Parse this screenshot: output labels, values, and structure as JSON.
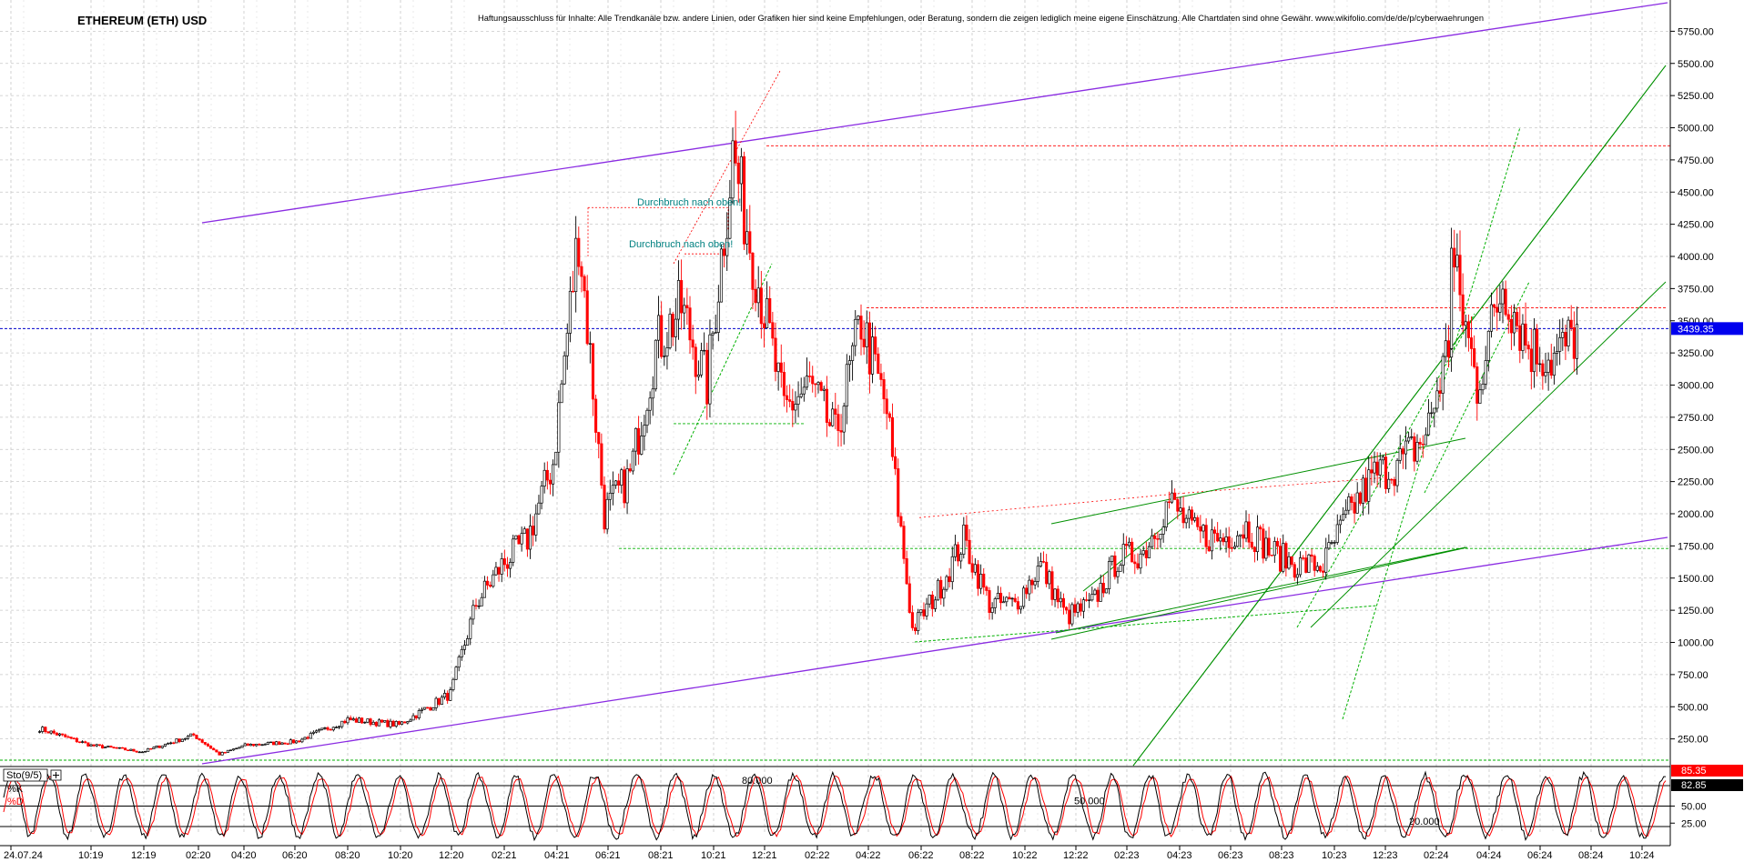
{
  "title": "ETHEREUM (ETH) USD",
  "disclaimer": "Haftungsausschluss für Inhalte: Alle Trendkanäle bzw. andere Linien, oder Grafiken hier sind keine Empfehlungen, oder Beratung, sondern die zeigen lediglich meine eigene Einschätzung. Alle Chartdaten sind ohne Gewähr.  www.wikifolio.com/de/de/p/cyberwaehrungen",
  "colors": {
    "channel": "#8a2be2",
    "trend": "#009000",
    "trend_dashed": "#00b000",
    "candle_up": "#000000",
    "candle_down": "#ff0000",
    "price_line": "#0000cc",
    "last_price_badge": "#0000ee",
    "stoch_k_badge": "#ff0000",
    "stoch_d_badge": "#000000",
    "annotation_text": "#008080",
    "resistance": "#ff0000"
  },
  "chart_data": {
    "type": "candlestick",
    "y_axis": {
      "side": "right",
      "range": [
        0,
        5950
      ],
      "ticks": [
        "250.00",
        "500.00",
        "750.00",
        "1000.00",
        "1250.00",
        "1500.00",
        "1750.00",
        "2000.00",
        "2250.00",
        "2500.00",
        "2750.00",
        "3000.00",
        "3250.00",
        "3500.00",
        "3750.00",
        "4000.00",
        "4250.00",
        "4500.00",
        "4750.00",
        "5000.00",
        "5250.00",
        "5500.00",
        "5750.00"
      ]
    },
    "x_axis": {
      "labels": [
        "24.07.24",
        "10:19",
        "12:19",
        "02:20",
        "04:20",
        "06:20",
        "08:20",
        "10:20",
        "12:20",
        "02:21",
        "04:21",
        "06:21",
        "08:21",
        "10:21",
        "12:21",
        "02:22",
        "04:22",
        "06:22",
        "08:22",
        "10:22",
        "12:22",
        "02:23",
        "04:23",
        "06:23",
        "08:23",
        "10:23",
        "12:23",
        "02:24",
        "04:24",
        "06:24",
        "08:24",
        "10:24"
      ]
    },
    "last_price": {
      "value": 3439.35,
      "label": "3439.35"
    },
    "price_path": [
      [
        "08:19",
        330
      ],
      [
        "10:19",
        200
      ],
      [
        "12:19",
        150
      ],
      [
        "02:20",
        280
      ],
      [
        "03:20",
        130
      ],
      [
        "04:20",
        200
      ],
      [
        "06:20",
        230
      ],
      [
        "08:20",
        400
      ],
      [
        "10:20",
        360
      ],
      [
        "12:20",
        600
      ],
      [
        "01:21",
        1300
      ],
      [
        "02:21",
        1600
      ],
      [
        "03:21",
        1800
      ],
      [
        "04:21",
        2400
      ],
      [
        "05:21",
        4200
      ],
      [
        "06:21",
        2000
      ],
      [
        "07:21",
        2300
      ],
      [
        "08:21",
        3300
      ],
      [
        "09:21",
        3600
      ],
      [
        "10:21",
        3000
      ],
      [
        "11:21",
        4800
      ],
      [
        "12:21",
        3800
      ],
      [
        "01:22",
        2800
      ],
      [
        "02:22",
        3000
      ],
      [
        "03:22",
        2600
      ],
      [
        "04:22",
        3500
      ],
      [
        "05:22",
        2800
      ],
      [
        "06:22",
        1100
      ],
      [
        "07:22",
        1400
      ],
      [
        "08:22",
        1800
      ],
      [
        "09:22",
        1300
      ],
      [
        "10:22",
        1300
      ],
      [
        "11:22",
        1600
      ],
      [
        "12:22",
        1200
      ],
      [
        "01:23",
        1300
      ],
      [
        "02:23",
        1650
      ],
      [
        "03:23",
        1700
      ],
      [
        "04:23",
        2100
      ],
      [
        "05:23",
        1850
      ],
      [
        "06:23",
        1800
      ],
      [
        "07:23",
        1900
      ],
      [
        "08:23",
        1700
      ],
      [
        "09:23",
        1600
      ],
      [
        "10:23",
        1600
      ],
      [
        "11:23",
        2000
      ],
      [
        "12:23",
        2300
      ],
      [
        "01:24",
        2400
      ],
      [
        "02:24",
        2600
      ],
      [
        "03:24",
        3400
      ],
      [
        "03:24",
        4000
      ],
      [
        "04:24",
        3000
      ],
      [
        "05:24",
        3800
      ],
      [
        "06:24",
        3300
      ],
      [
        "07:24",
        3200
      ],
      [
        "08:24",
        3439.35
      ]
    ],
    "horizontal_levels": [
      {
        "value": 4860,
        "color": "resistance"
      },
      {
        "value": 3600,
        "color": "resistance"
      },
      {
        "value": 1730,
        "color": "trend_dashed"
      },
      {
        "value": 2700,
        "color": "trend_dashed"
      },
      {
        "value": 0,
        "color": "trend_dashed"
      }
    ],
    "annotations": [
      "Durchbruch nach oben!",
      "Durchbruch nach oben!"
    ],
    "stochastic": {
      "label": "Sto(9/5)",
      "k_label": "%K",
      "d_label": "%D",
      "levels": [
        "80.000",
        "50.000",
        "20.000"
      ],
      "ticks": [
        "25.00",
        "50.00"
      ],
      "k_value": "85.35",
      "d_value": "82.85"
    }
  }
}
